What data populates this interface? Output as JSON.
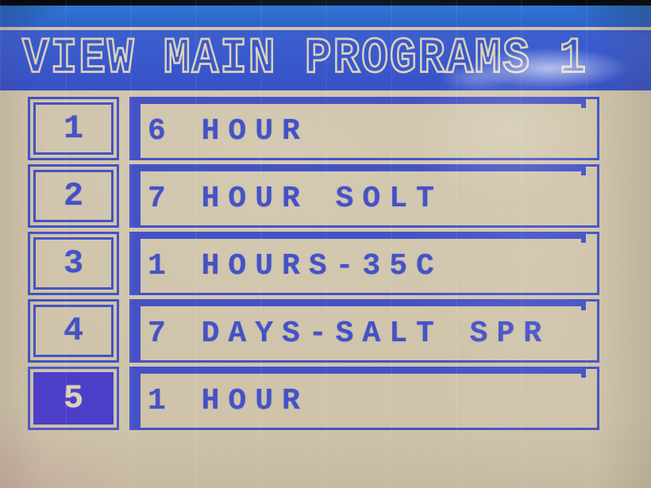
{
  "screen": {
    "title": "VIEW MAIN PROGRAMS 1"
  },
  "programs": [
    {
      "slot": "1",
      "name": "6 HOUR",
      "selected": false
    },
    {
      "slot": "2",
      "name": "7 HOUR SOLT",
      "selected": false
    },
    {
      "slot": "3",
      "name": "1 HOURS-35C",
      "selected": false
    },
    {
      "slot": "4",
      "name": "7 DAYS-SALT SPR",
      "selected": false
    },
    {
      "slot": "5",
      "name": "1 HOUR",
      "selected": true
    }
  ],
  "colors": {
    "accent_blue": "#4552c5",
    "titlebar_blue": "#3a58cd",
    "top_band_blue": "#2f6bd2",
    "background_beige": "#cfc4aa",
    "selected_fill": "#4c3ec9",
    "text_on_selected": "#dbd2b8"
  }
}
